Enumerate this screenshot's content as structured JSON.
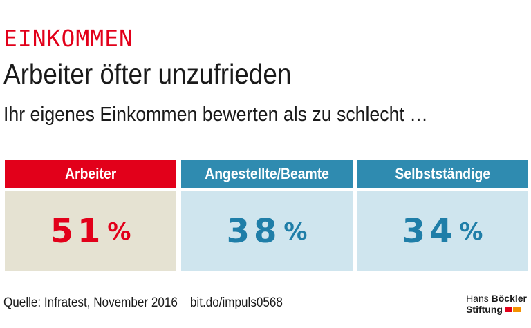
{
  "header": {
    "category": "EINKOMMEN",
    "title": "Arbeiter öfter unzufrieden",
    "subtitle": "Ihr eigenes Einkommen bewerten als zu schlecht …"
  },
  "chart_data": {
    "type": "table",
    "title": "Arbeiter öfter unzufrieden",
    "subtitle": "Ihr eigenes Einkommen bewerten als zu schlecht …",
    "categories": [
      "Arbeiter",
      "Angestellte/Beamte",
      "Selbstständige"
    ],
    "values": [
      51,
      38,
      34
    ],
    "unit": "%",
    "colors": {
      "header": [
        "#e2001a",
        "#2f8bb0",
        "#2f8bb0"
      ],
      "body": [
        "#e5e2d2",
        "#cfe5ee",
        "#cfe5ee"
      ],
      "value": [
        "#e2001a",
        "#1f7ea8",
        "#1f7ea8"
      ]
    }
  },
  "footer": {
    "source": "Quelle:  Infratest, November 2016",
    "link": "bit.do/impuls0568"
  },
  "logo": {
    "line1_a": "Hans ",
    "line1_b": "Böckler",
    "line2": "Stiftung",
    "colors": [
      "#e2001a",
      "#f39200"
    ]
  }
}
